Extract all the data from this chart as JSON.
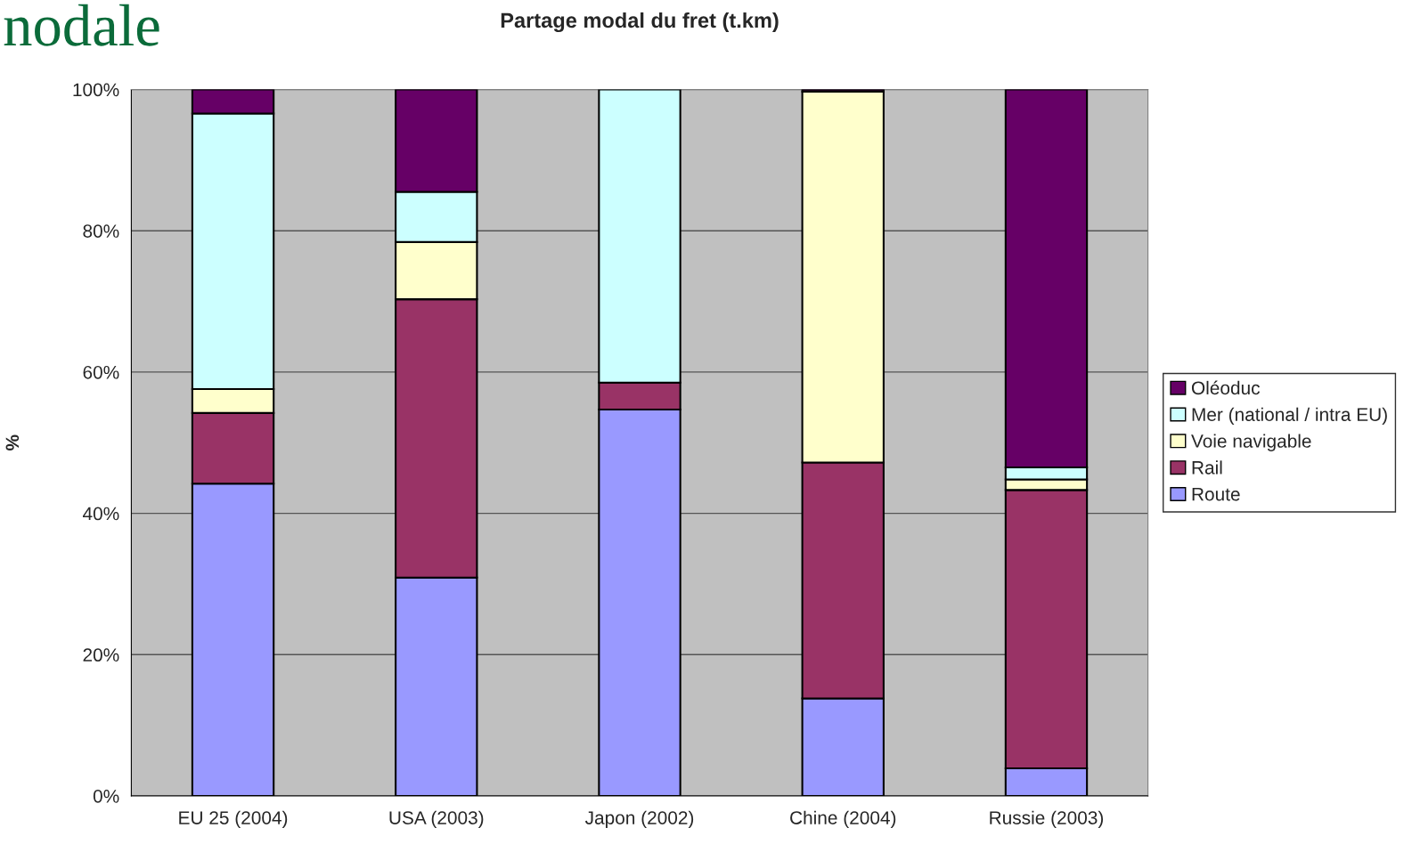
{
  "chart_data": {
    "type": "bar",
    "title": "Partage modal du fret (t.km)",
    "ylabel": "%",
    "stacked": true,
    "annotations": [
      "nodale"
    ],
    "categories": [
      "EU 25 (2004)",
      "USA (2003)",
      "Japon (2002)",
      "Chine (2004)",
      "Russie (2003)"
    ],
    "series": [
      {
        "name": "Route",
        "color": "#9999ff",
        "values": [
          44.2,
          30.9,
          54.7,
          13.8,
          3.9
        ]
      },
      {
        "name": "Rail",
        "color": "#993366",
        "values": [
          10.0,
          39.4,
          3.8,
          33.4,
          39.4
        ]
      },
      {
        "name": "Voie navigable",
        "color": "#ffffcc",
        "values": [
          3.4,
          8.1,
          0,
          52.5,
          1.5
        ]
      },
      {
        "name": "Mer (national / intra EU)",
        "color": "#ccffff",
        "values": [
          39.0,
          7.1,
          41.5,
          0,
          1.7
        ]
      },
      {
        "name": "Oléoduc",
        "color": "#660066",
        "values": [
          3.4,
          14.5,
          0,
          0.3,
          53.5
        ]
      }
    ],
    "ylim": [
      0,
      100
    ],
    "yticks": [
      {
        "value": 0,
        "label": "0%"
      },
      {
        "value": 20,
        "label": "20%"
      },
      {
        "value": 40,
        "label": "40%"
      },
      {
        "value": 60,
        "label": "60%"
      },
      {
        "value": 80,
        "label": "80%"
      },
      {
        "value": 100,
        "label": "100%"
      }
    ],
    "grid": "y",
    "legend": "right"
  }
}
